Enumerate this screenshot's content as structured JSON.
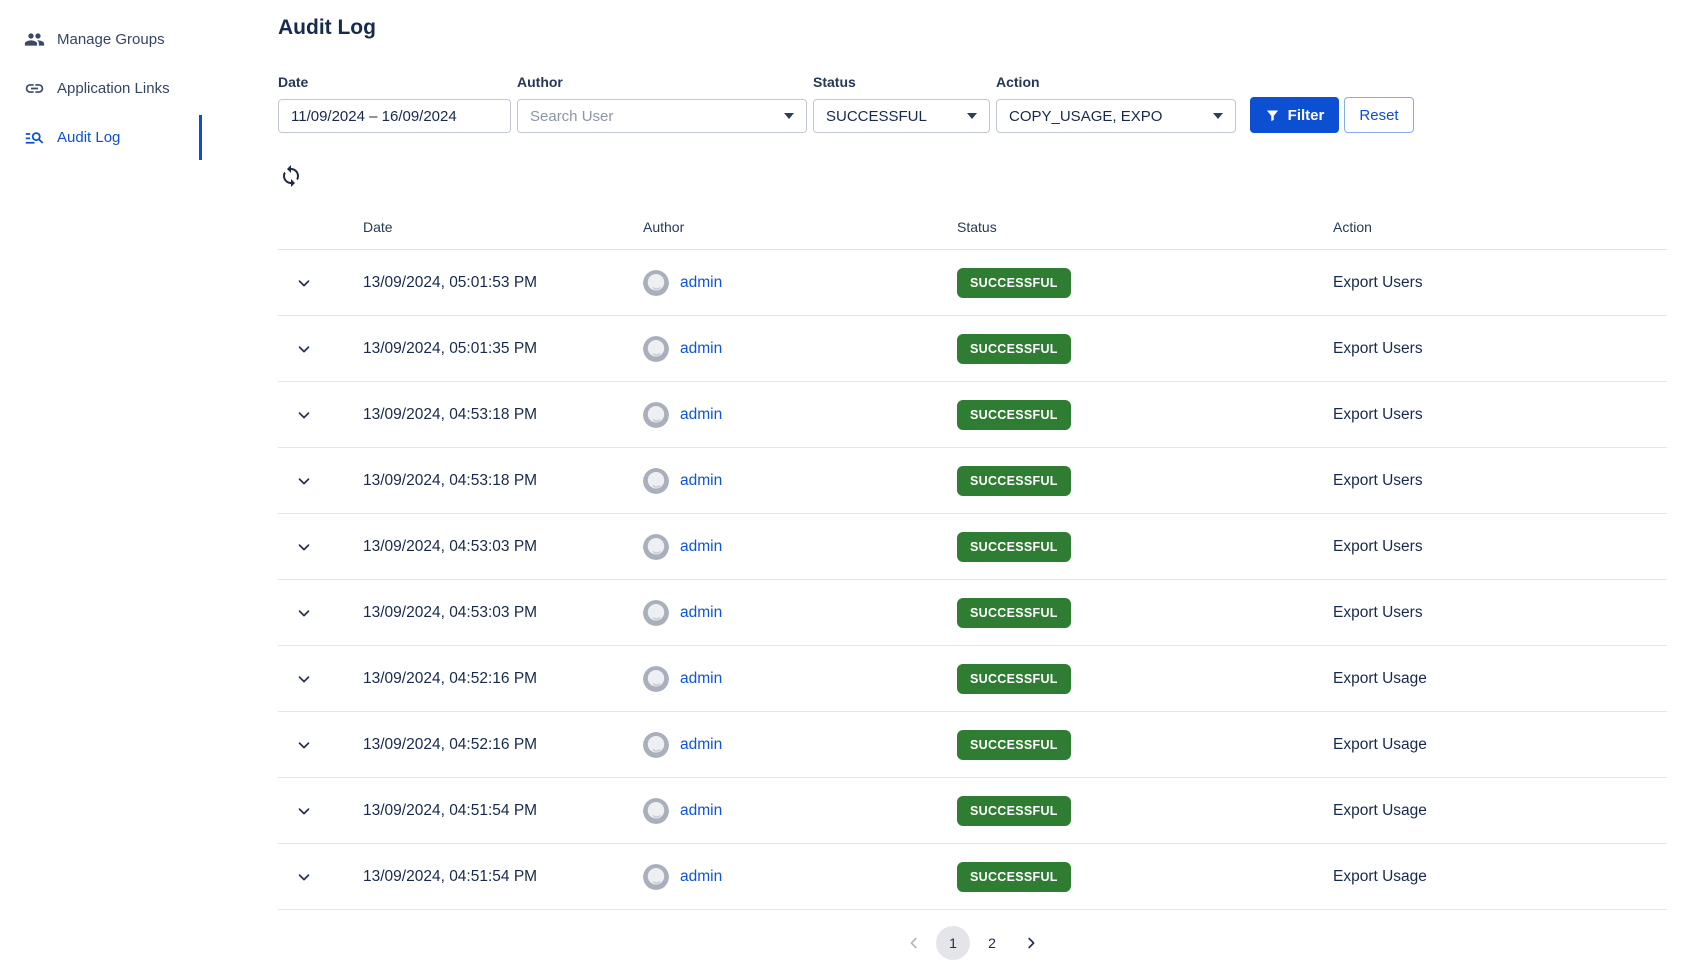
{
  "colors": {
    "accent_blue": "#0d4fd2",
    "link_blue": "#0d55d6",
    "badge_green": "#2e7d32",
    "text_navy": "#172b4d",
    "sidebar_text": "#344563"
  },
  "sidebar": {
    "items": [
      {
        "label": "Manage Groups",
        "icon": "people-icon",
        "active": false
      },
      {
        "label": "Application Links",
        "icon": "link-icon",
        "active": false
      },
      {
        "label": "Audit Log",
        "icon": "list-search-icon",
        "active": true
      }
    ]
  },
  "page": {
    "title": "Audit Log"
  },
  "filters": {
    "date": {
      "label": "Date",
      "value": "11/09/2024 – 16/09/2024"
    },
    "author": {
      "label": "Author",
      "placeholder": "Search User",
      "icon": "chevron-down-caret"
    },
    "status": {
      "label": "Status",
      "value": "SUCCESSFUL",
      "icon": "chevron-down-caret"
    },
    "action": {
      "label": "Action",
      "value": "COPY_USAGE, EXPO",
      "icon": "chevron-down-caret"
    },
    "filter_button": {
      "label": "Filter",
      "icon": "funnel-icon"
    },
    "reset_button": {
      "label": "Reset"
    },
    "refresh_icon": "refresh-sync-icon"
  },
  "table": {
    "columns": [
      "Date",
      "Author",
      "Status",
      "Action"
    ],
    "rows": [
      {
        "date": "13/09/2024, 05:01:53 PM",
        "author": "admin",
        "status": "SUCCESSFUL",
        "action": "Export Users"
      },
      {
        "date": "13/09/2024, 05:01:35 PM",
        "author": "admin",
        "status": "SUCCESSFUL",
        "action": "Export Users"
      },
      {
        "date": "13/09/2024, 04:53:18 PM",
        "author": "admin",
        "status": "SUCCESSFUL",
        "action": "Export Users"
      },
      {
        "date": "13/09/2024, 04:53:18 PM",
        "author": "admin",
        "status": "SUCCESSFUL",
        "action": "Export Users"
      },
      {
        "date": "13/09/2024, 04:53:03 PM",
        "author": "admin",
        "status": "SUCCESSFUL",
        "action": "Export Users"
      },
      {
        "date": "13/09/2024, 04:53:03 PM",
        "author": "admin",
        "status": "SUCCESSFUL",
        "action": "Export Users"
      },
      {
        "date": "13/09/2024, 04:52:16 PM",
        "author": "admin",
        "status": "SUCCESSFUL",
        "action": "Export Usage"
      },
      {
        "date": "13/09/2024, 04:52:16 PM",
        "author": "admin",
        "status": "SUCCESSFUL",
        "action": "Export Usage"
      },
      {
        "date": "13/09/2024, 04:51:54 PM",
        "author": "admin",
        "status": "SUCCESSFUL",
        "action": "Export Usage"
      },
      {
        "date": "13/09/2024, 04:51:54 PM",
        "author": "admin",
        "status": "SUCCESSFUL",
        "action": "Export Usage"
      }
    ]
  },
  "pagination": {
    "prev_icon": "chevron-left-icon",
    "next_icon": "chevron-right-icon",
    "pages": [
      "1",
      "2"
    ],
    "current_page": "1"
  }
}
